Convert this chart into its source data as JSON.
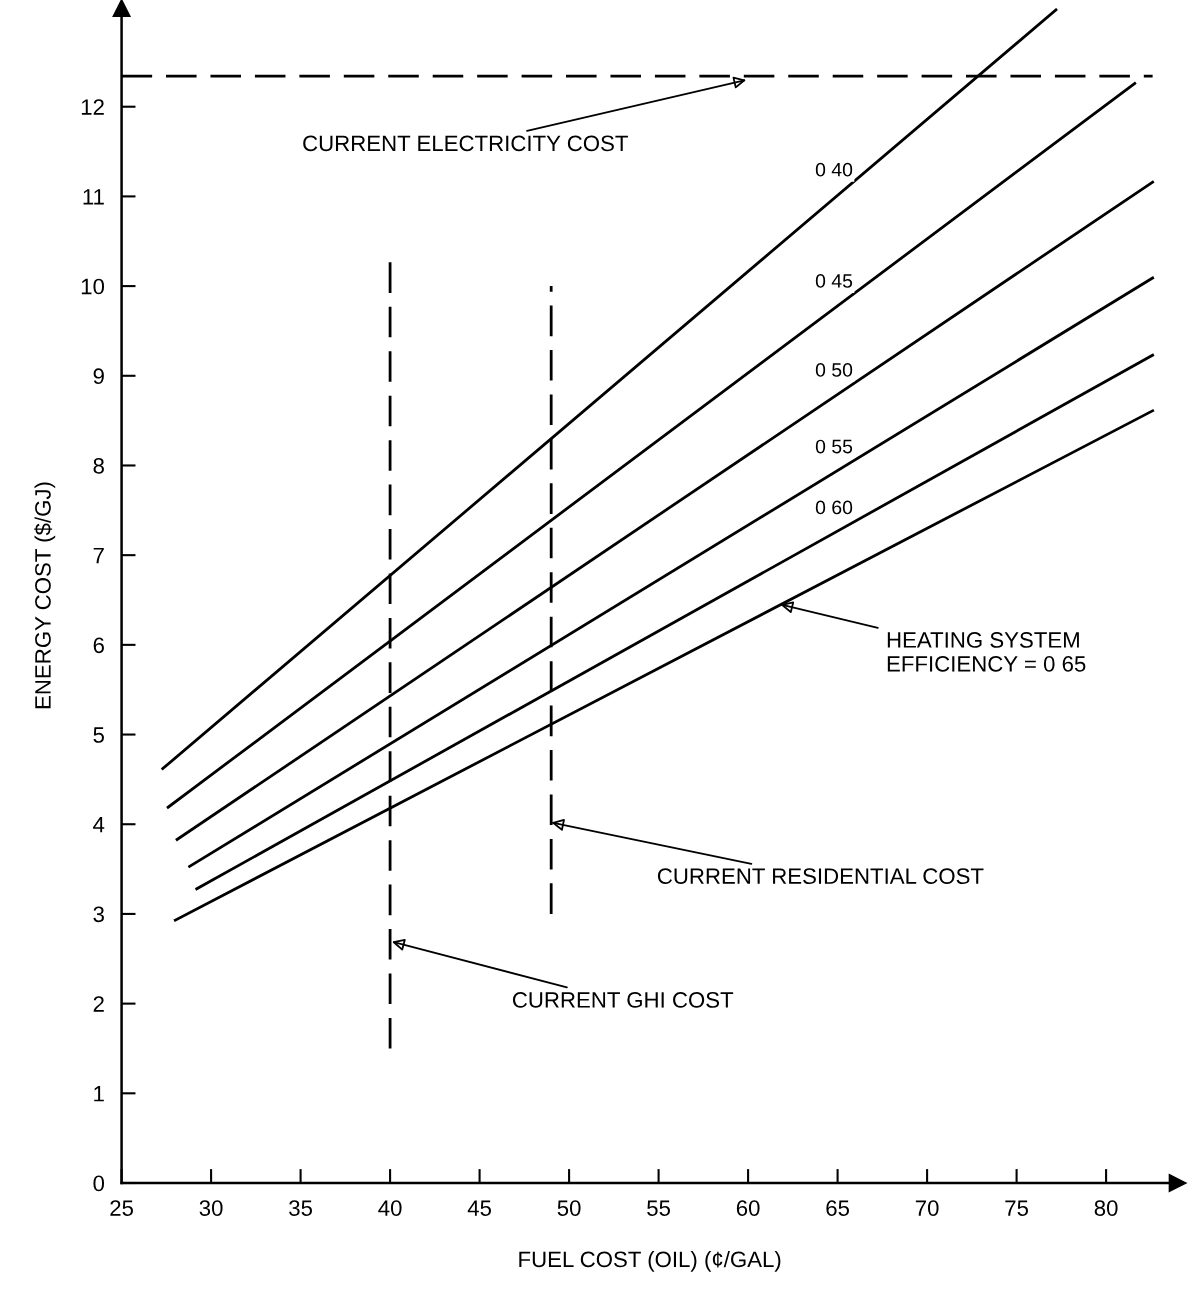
{
  "chart_data": {
    "type": "line",
    "xlabel": "FUEL COST (OIL) (¢/GAL)",
    "ylabel": "ENERGY COST ($/GJ)",
    "xlim": [
      25,
      84
    ],
    "ylim": [
      0,
      13.1
    ],
    "xticks": [
      25,
      30,
      35,
      40,
      45,
      50,
      55,
      60,
      65,
      70,
      75,
      80
    ],
    "yticks": [
      0,
      1,
      2,
      3,
      4,
      5,
      6,
      7,
      8,
      9,
      10,
      11,
      12
    ],
    "grid": false,
    "legend": false,
    "marker": "none",
    "line_style": "solid",
    "series": [
      {
        "name": "0 40",
        "color": "#000000",
        "x": [
          27.3,
          77.2
        ],
        "values": [
          4.62,
          13.08
        ]
      },
      {
        "name": "0 45",
        "color": "#000000",
        "x": [
          27.6,
          81.6
        ],
        "values": [
          4.19,
          12.26
        ]
      },
      {
        "name": "0 50",
        "color": "#000000",
        "x": [
          28.1,
          82.6
        ],
        "values": [
          3.83,
          11.16
        ]
      },
      {
        "name": "0 55",
        "color": "#000000",
        "x": [
          28.8,
          82.6
        ],
        "values": [
          3.53,
          10.09
        ]
      },
      {
        "name": "0 60",
        "color": "#000000",
        "x": [
          29.2,
          82.6
        ],
        "values": [
          3.28,
          9.23
        ]
      },
      {
        "color": "#000000",
        "x": [
          28.0,
          82.6
        ],
        "values": [
          2.93,
          8.61
        ]
      },
      {
        "color": "#000000",
        "line_style": "dashed",
        "x": [
          25,
          82.6
        ],
        "values": [
          12.34,
          12.34
        ]
      },
      {
        "color": "#000000",
        "line_style": "dashed",
        "x": [
          40,
          40
        ],
        "values": [
          1.5,
          10.3
        ]
      },
      {
        "color": "#000000",
        "line_style": "dashed",
        "x": [
          49,
          49
        ],
        "values": [
          3.0,
          10.0
        ]
      }
    ],
    "annotations": [
      {
        "text": "CURRENT ELECTRICITY COST",
        "x": 59.9,
        "y": 12.3
      },
      {
        "text": "HEATING SYSTEM\nEFFICIENCY = 0 65",
        "x": 61.8,
        "y": 6.45
      },
      {
        "text": "CURRENT RESIDENTIAL COST",
        "x": 49,
        "y": 4.02
      },
      {
        "text": "CURRENT GHI COST",
        "x": 40.1,
        "y": 2.69
      }
    ]
  }
}
